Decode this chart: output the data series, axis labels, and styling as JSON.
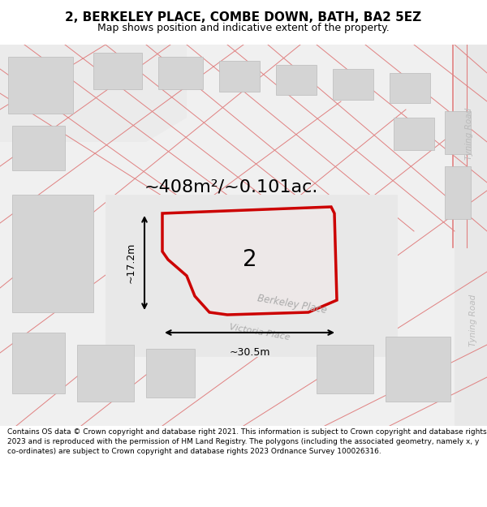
{
  "title": "2, BERKELEY PLACE, COMBE DOWN, BATH, BA2 5EZ",
  "subtitle": "Map shows position and indicative extent of the property.",
  "footer": "Contains OS data © Crown copyright and database right 2021. This information is subject to Crown copyright and database rights 2023 and is reproduced with the permission of HM Land Registry. The polygons (including the associated geometry, namely x, y co-ordinates) are subject to Crown copyright and database rights 2023 Ordnance Survey 100026316.",
  "area_label": "~408m²/~0.101ac.",
  "number_label": "2",
  "dim_width": "~30.5m",
  "dim_height": "~17.2m",
  "plot_outline_color": "#cc0000",
  "building_color": "#d4d4d4",
  "building_edge_color": "#bbbbbb",
  "map_bg": "#f2f2f2",
  "road_fill": "#ffffff",
  "road_line_color": "#e08080",
  "street_label_color": "#aaaaaa",
  "road_label_color": "#bbbbbb",
  "property_fill": "#ede8e8",
  "block_fill": "#e0e0e0",
  "title_fontsize": 11,
  "subtitle_fontsize": 9,
  "area_fontsize": 16,
  "number_fontsize": 20,
  "dim_fontsize": 9,
  "footer_fontsize": 6.5
}
